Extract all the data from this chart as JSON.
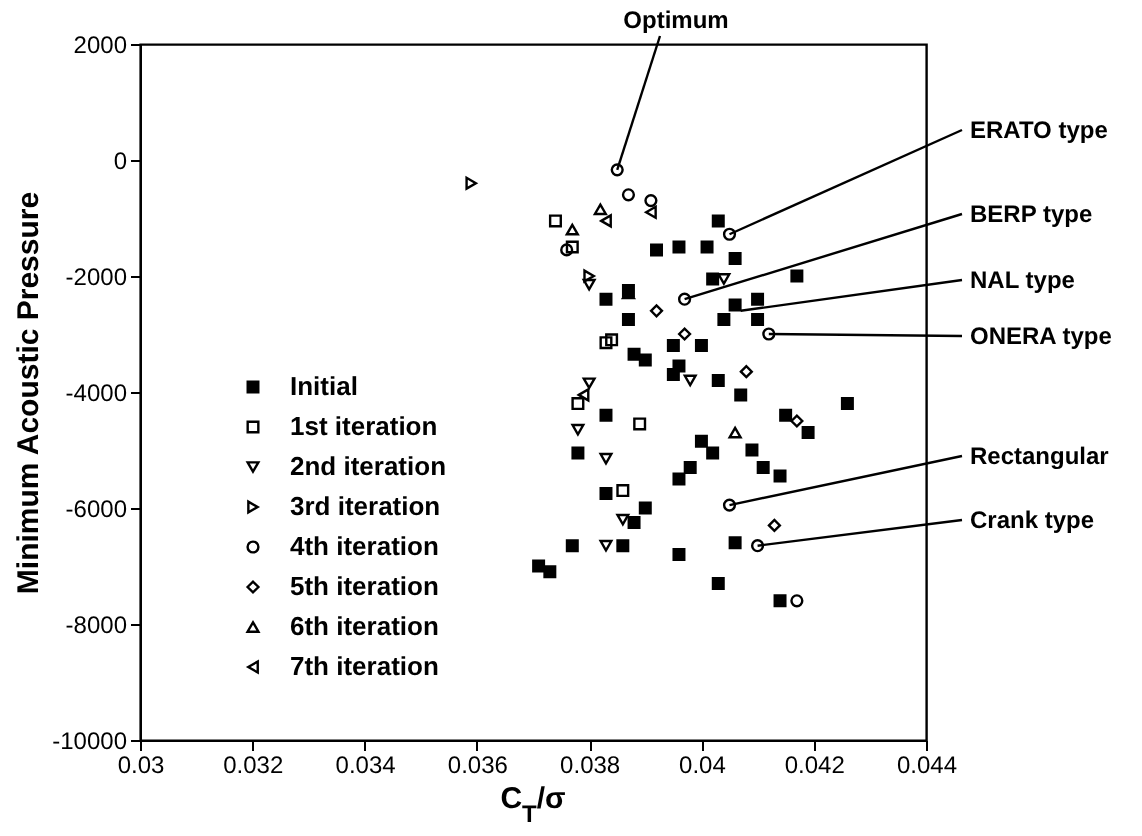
{
  "chart_data": {
    "type": "scatter",
    "xlabel": "C$_{T}$/σ",
    "ylabel": "Minimum Acoustic Pressure",
    "xlim": [
      0.03,
      0.044
    ],
    "xticks": [
      0.03,
      0.032,
      0.034,
      0.036,
      0.038,
      0.04,
      0.042,
      0.044
    ],
    "ylim": [
      -10000,
      2000
    ],
    "yticks": [
      {
        "value": -10000,
        "label": "-10000"
      },
      {
        "value": -8000,
        "label": "-8000"
      },
      {
        "value": -6000,
        "label": "-6000"
      },
      {
        "value": -4000,
        "label": "-4000"
      },
      {
        "value": -2000,
        "label": "-2000"
      },
      0,
      2000
    ],
    "grid": false,
    "legend": "bottom left",
    "annotations": [
      {
        "text": "Optimum",
        "x": 0.0385,
        "y": -170
      },
      {
        "text": "ERATO type",
        "x": 0.0405,
        "y": -1280
      },
      {
        "text": "BERP type",
        "x": 0.0397,
        "y": -2400
      },
      {
        "text": "NAL type",
        "x": 0.0407,
        "y": -2600
      },
      {
        "text": "ONERA type",
        "x": 0.0412,
        "y": -3000
      },
      {
        "text": "Rectangular",
        "x": 0.0405,
        "y": -5950
      },
      {
        "text": "Crank type",
        "x": 0.041,
        "y": -6650
      }
    ],
    "series": [
      {
        "name": "Initial",
        "color": "#000000",
        "x": [
          0.0392,
          0.0396,
          0.0383,
          0.0387,
          0.0387,
          0.0388,
          0.039,
          0.0401,
          0.0403,
          0.0402,
          0.0406,
          0.0417,
          0.0395,
          0.0396,
          0.0395,
          0.04,
          0.0403,
          0.0407,
          0.0404,
          0.0406,
          0.041,
          0.041,
          0.0426,
          0.0415,
          0.0419,
          0.0383,
          0.04,
          0.0402,
          0.0398,
          0.0396,
          0.0409,
          0.0411,
          0.0414,
          0.039,
          0.0388,
          0.0386,
          0.0396,
          0.0406,
          0.0403,
          0.0414,
          0.0378,
          0.0383,
          0.0377,
          0.0371,
          0.0373
        ],
        "values": [
          -1550,
          -1500,
          -2400,
          -2250,
          -2750,
          -3350,
          -3450,
          -1500,
          -1050,
          -2050,
          -1700,
          -2000,
          -3200,
          -3550,
          -3700,
          -3200,
          -3800,
          -4050,
          -2750,
          -2500,
          -2750,
          -2400,
          -4200,
          -4400,
          -4700,
          -4400,
          -4850,
          -5050,
          -5300,
          -5500,
          -5000,
          -5300,
          -5450,
          -6000,
          -6250,
          -6650,
          -6800,
          -6600,
          -7300,
          -7600,
          -5050,
          -5750,
          -6650,
          -7000,
          -7100
        ]
      },
      {
        "name": "1st iteration",
        "color": "#000000",
        "x": [
          0.0374,
          0.0377,
          0.0384,
          0.0389,
          0.0386,
          0.0378,
          0.0383
        ],
        "values": [
          -1050,
          -1500,
          -3100,
          -4550,
          -5700,
          -4200,
          -3150
        ]
      },
      {
        "name": "2nd iteration",
        "color": "#000000",
        "x": [
          0.038,
          0.0378,
          0.0398,
          0.0404,
          0.0386,
          0.0383,
          0.0383,
          0.038
        ],
        "values": [
          -3850,
          -4650,
          -3800,
          -2050,
          -6200,
          -6650,
          -5150,
          -2150
        ]
      },
      {
        "name": "3rd iteration",
        "color": "#000000",
        "x": [
          0.0359,
          0.038
        ],
        "values": [
          -400,
          -2000
        ]
      },
      {
        "name": "4th iteration",
        "color": "#000000",
        "x": [
          0.0385,
          0.0405,
          0.0397,
          0.0412,
          0.0387,
          0.0391,
          0.0405,
          0.041,
          0.0417,
          0.0376
        ],
        "values": [
          -170,
          -1280,
          -2400,
          -3000,
          -600,
          -700,
          -5950,
          -6650,
          -7600,
          -1550
        ]
      },
      {
        "name": "5th iteration",
        "color": "#000000",
        "x": [
          0.0392,
          0.0397,
          0.0408,
          0.0417,
          0.0413
        ],
        "values": [
          -2600,
          -3000,
          -3650,
          -4500,
          -6300
        ]
      },
      {
        "name": "6th iteration",
        "color": "#000000",
        "x": [
          0.0377,
          0.0387,
          0.0406,
          0.0382
        ],
        "values": [
          -1200,
          -2300,
          -4700,
          -850
        ]
      },
      {
        "name": "7th iteration",
        "color": "#000000",
        "x": [
          0.0383,
          0.0391,
          0.0379
        ],
        "values": [
          -1050,
          -900,
          -4050
        ]
      }
    ]
  }
}
